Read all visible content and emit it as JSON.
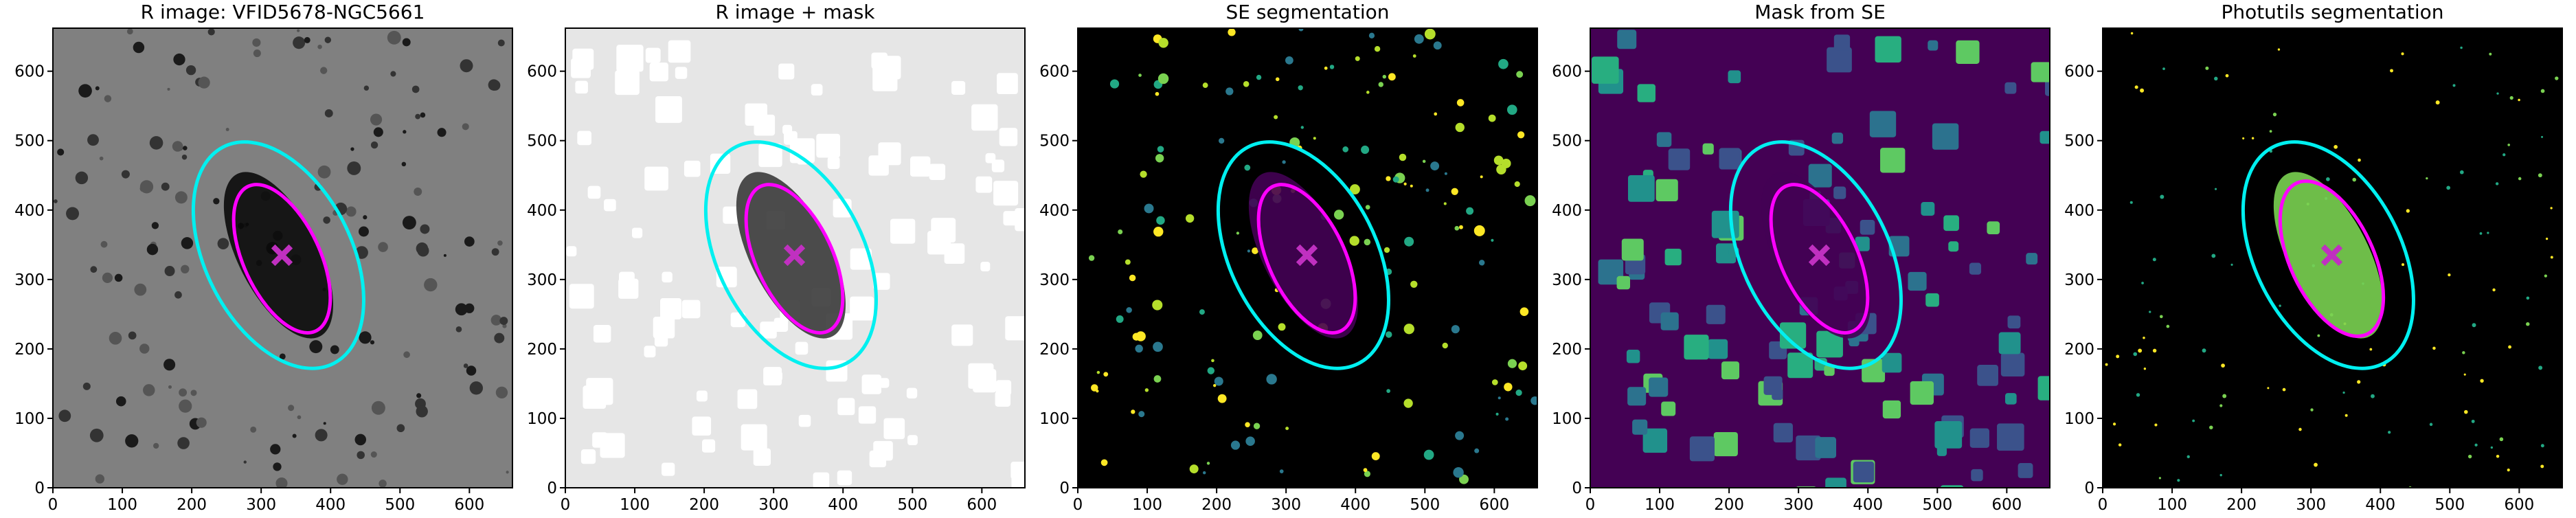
{
  "chart_data": [
    {
      "type": "image",
      "title": "R image: VFID5678-NGC5661",
      "xlim": [
        0,
        662
      ],
      "ylim": [
        0,
        662
      ],
      "xticks": [
        0,
        100,
        200,
        300,
        400,
        500,
        600
      ],
      "yticks": [
        0,
        100,
        200,
        300,
        400,
        500,
        600
      ],
      "background": "#808080",
      "spot_colors": [
        "#1a1a1a",
        "#333333",
        "#555555"
      ],
      "spot_shape": "circle",
      "galaxy_color": "#0a0a0a",
      "ellipses": [
        {
          "cx": 325,
          "cy": 335,
          "rx": 105,
          "ry": 175,
          "angle": 27,
          "color": "#00f0f0"
        },
        {
          "cx": 330,
          "cy": 330,
          "rx": 55,
          "ry": 115,
          "angle": 25,
          "color": "#ff00ff"
        }
      ],
      "marker": {
        "x": 330,
        "y": 335,
        "color": "#c030c0"
      }
    },
    {
      "type": "image",
      "title": "R image + mask",
      "xlim": [
        0,
        662
      ],
      "ylim": [
        0,
        662
      ],
      "xticks": [
        0,
        100,
        200,
        300,
        400,
        500,
        600
      ],
      "yticks": [
        0,
        100,
        200,
        300,
        400,
        500,
        600
      ],
      "background": "#e6e6e6",
      "spot_colors": [
        "#ffffff"
      ],
      "spot_shape": "square",
      "galaxy_color": "#3a3a3a",
      "ellipses": [
        {
          "cx": 325,
          "cy": 335,
          "rx": 105,
          "ry": 175,
          "angle": 27,
          "color": "#00f0f0"
        },
        {
          "cx": 330,
          "cy": 330,
          "rx": 55,
          "ry": 115,
          "angle": 25,
          "color": "#ff00ff"
        }
      ],
      "marker": {
        "x": 330,
        "y": 335,
        "color": "#c030c0"
      }
    },
    {
      "type": "image",
      "title": "SE segmentation",
      "xlim": [
        0,
        662
      ],
      "ylim": [
        0,
        662
      ],
      "xticks": [
        0,
        100,
        200,
        300,
        400,
        500,
        600
      ],
      "yticks": [
        0,
        100,
        200,
        300,
        400,
        500,
        600
      ],
      "background": "#000000",
      "spot_colors": [
        "#fde725",
        "#7ad151",
        "#22a884",
        "#2a788e",
        "#b5de2b"
      ],
      "spot_shape": "circle",
      "galaxy_color": "#440154",
      "ellipses": [
        {
          "cx": 325,
          "cy": 335,
          "rx": 105,
          "ry": 175,
          "angle": 27,
          "color": "#00f0f0"
        },
        {
          "cx": 330,
          "cy": 330,
          "rx": 55,
          "ry": 115,
          "angle": 25,
          "color": "#ff00ff"
        }
      ],
      "marker": {
        "x": 330,
        "y": 335,
        "color": "#c030c0"
      }
    },
    {
      "type": "image",
      "title": "Mask from SE",
      "xlim": [
        0,
        662
      ],
      "ylim": [
        0,
        662
      ],
      "xticks": [
        0,
        100,
        200,
        300,
        400,
        500,
        600
      ],
      "yticks": [
        0,
        100,
        200,
        300,
        400,
        500,
        600
      ],
      "background": "#440154",
      "spot_colors": [
        "#3b528b",
        "#2c728e",
        "#21918c",
        "#28ae80",
        "#5ec962"
      ],
      "spot_shape": "square",
      "galaxy_color": "#440154",
      "ellipses": [
        {
          "cx": 325,
          "cy": 335,
          "rx": 105,
          "ry": 175,
          "angle": 27,
          "color": "#00f0f0"
        },
        {
          "cx": 330,
          "cy": 330,
          "rx": 55,
          "ry": 115,
          "angle": 25,
          "color": "#ff00ff"
        }
      ],
      "marker": {
        "x": 330,
        "y": 335,
        "color": "#c030c0"
      }
    },
    {
      "type": "image",
      "title": "Photutils segmentation",
      "xlim": [
        0,
        662
      ],
      "ylim": [
        0,
        662
      ],
      "xticks": [
        0,
        100,
        200,
        300,
        400,
        500,
        600
      ],
      "yticks": [
        0,
        100,
        200,
        300,
        400,
        500,
        600
      ],
      "background": "#000000",
      "spot_colors": [
        "#7ad151",
        "#22a884",
        "#fde725"
      ],
      "spot_shape": "dot",
      "galaxy_color": "#7ad151",
      "ellipses": [
        {
          "cx": 325,
          "cy": 335,
          "rx": 105,
          "ry": 175,
          "angle": 27,
          "color": "#00f0f0"
        },
        {
          "cx": 330,
          "cy": 330,
          "rx": 60,
          "ry": 120,
          "angle": 25,
          "color": "#ff00ff"
        }
      ],
      "marker": {
        "x": 330,
        "y": 335,
        "color": "#c030c0"
      }
    }
  ]
}
